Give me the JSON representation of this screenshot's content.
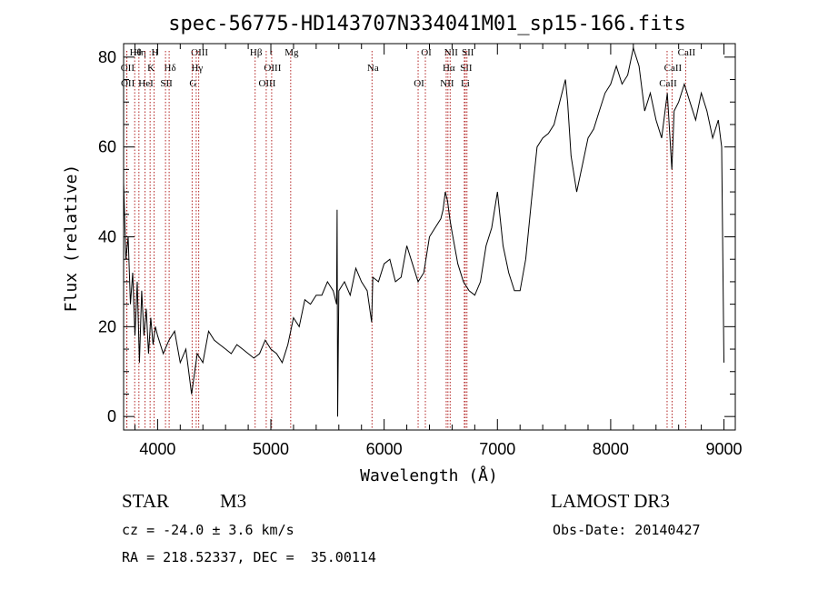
{
  "chart_data": {
    "type": "line",
    "title": "spec-56775-HD143707N334041M01_sp15-166.fits",
    "xlabel": "Wavelength (Å)",
    "ylabel": "Flux (relative)",
    "xlim": [
      3700,
      9100
    ],
    "ylim": [
      -3,
      83
    ],
    "xticks": [
      4000,
      5000,
      6000,
      7000,
      8000,
      9000
    ],
    "yticks": [
      0,
      20,
      40,
      60,
      80
    ],
    "grid": false,
    "series": [
      {
        "x": [
          3700,
          3720,
          3740,
          3760,
          3780,
          3800,
          3820,
          3840,
          3860,
          3880,
          3900,
          3920,
          3940,
          3960,
          3980,
          4000,
          4050,
          4100,
          4150,
          4200,
          4250,
          4300,
          4350,
          4400,
          4450,
          4500,
          4550,
          4600,
          4650,
          4700,
          4750,
          4800,
          4850,
          4900,
          4950,
          5000,
          5050,
          5100,
          5150,
          5200,
          5250,
          5300,
          5350,
          5400,
          5450,
          5500,
          5550,
          5580,
          5585,
          5590,
          5600,
          5650,
          5700,
          5750,
          5800,
          5850,
          5890,
          5900,
          5950,
          6000,
          6050,
          6100,
          6150,
          6200,
          6250,
          6300,
          6350,
          6400,
          6450,
          6500,
          6520,
          6540,
          6560,
          6580,
          6600,
          6650,
          6700,
          6750,
          6800,
          6850,
          6900,
          6950,
          7000,
          7050,
          7100,
          7150,
          7200,
          7250,
          7300,
          7350,
          7400,
          7450,
          7500,
          7550,
          7600,
          7620,
          7650,
          7700,
          7750,
          7800,
          7850,
          7900,
          7950,
          8000,
          8050,
          8100,
          8150,
          8200,
          8250,
          8300,
          8350,
          8400,
          8450,
          8500,
          8540,
          8560,
          8600,
          8650,
          8700,
          8750,
          8800,
          8850,
          8900,
          8950,
          8980,
          9000
        ],
        "y": [
          52,
          35,
          40,
          25,
          32,
          18,
          30,
          12,
          28,
          18,
          24,
          14,
          22,
          16,
          20,
          18,
          14,
          17,
          19,
          12,
          15,
          5,
          14,
          12,
          19,
          17,
          16,
          15,
          14,
          16,
          15,
          14,
          13,
          14,
          17,
          15,
          14,
          12,
          16,
          22,
          20,
          26,
          25,
          27,
          27,
          30,
          28,
          25,
          46,
          0,
          28,
          30,
          27,
          33,
          30,
          28,
          21,
          31,
          30,
          34,
          35,
          30,
          31,
          38,
          34,
          30,
          32,
          40,
          42,
          44,
          46,
          50,
          48,
          44,
          41,
          34,
          30,
          28,
          27,
          30,
          38,
          42,
          50,
          38,
          32,
          28,
          28,
          35,
          48,
          60,
          62,
          63,
          65,
          70,
          75,
          70,
          58,
          50,
          56,
          62,
          64,
          68,
          72,
          74,
          78,
          74,
          76,
          82,
          78,
          68,
          72,
          66,
          62,
          72,
          55,
          68,
          70,
          74,
          70,
          66,
          72,
          68,
          62,
          66,
          60,
          12
        ]
      }
    ],
    "spectral_lines": [
      {
        "label": "Hθ",
        "wavelength": 3798
      },
      {
        "label": "OII",
        "wavelength": 3727
      },
      {
        "label": "OII",
        "wavelength": 3729
      },
      {
        "label": "Hη",
        "wavelength": 3835
      },
      {
        "label": "K",
        "wavelength": 3934
      },
      {
        "label": "HeI",
        "wavelength": 3889
      },
      {
        "label": "H",
        "wavelength": 3969
      },
      {
        "label": "Hδ",
        "wavelength": 4102
      },
      {
        "label": "SII",
        "wavelength": 4070
      },
      {
        "label": "OIII",
        "wavelength": 4363
      },
      {
        "label": "Hγ",
        "wavelength": 4341
      },
      {
        "label": "G",
        "wavelength": 4305
      },
      {
        "label": "Hβ",
        "wavelength": 4861
      },
      {
        "label": "OIII",
        "wavelength": 5007
      },
      {
        "label": "OIII",
        "wavelength": 4959
      },
      {
        "label": "Mg",
        "wavelength": 5175
      },
      {
        "label": "Na",
        "wavelength": 5893
      },
      {
        "label": "OI",
        "wavelength": 6300
      },
      {
        "label": "OI",
        "wavelength": 6364
      },
      {
        "label": "Hα",
        "wavelength": 6563
      },
      {
        "label": "NII",
        "wavelength": 6548
      },
      {
        "label": "NII",
        "wavelength": 6583
      },
      {
        "label": "SII",
        "wavelength": 6716
      },
      {
        "label": "Li",
        "wavelength": 6708
      },
      {
        "label": "SII",
        "wavelength": 6731
      },
      {
        "label": "CaII",
        "wavelength": 8542
      },
      {
        "label": "CaII",
        "wavelength": 8498
      },
      {
        "label": "CaII",
        "wavelength": 8662
      }
    ]
  },
  "info": {
    "object_class": "STAR",
    "subclass": "M3",
    "survey": "LAMOST DR3",
    "redshift": "cz = -24.0 ± 3.6 km/s",
    "obs_date": "Obs-Date: 20140427",
    "coords": "RA = 218.52337, DEC =  35.00114"
  },
  "colors": {
    "line_markers": "#b22222",
    "spectrum": "#000000"
  }
}
